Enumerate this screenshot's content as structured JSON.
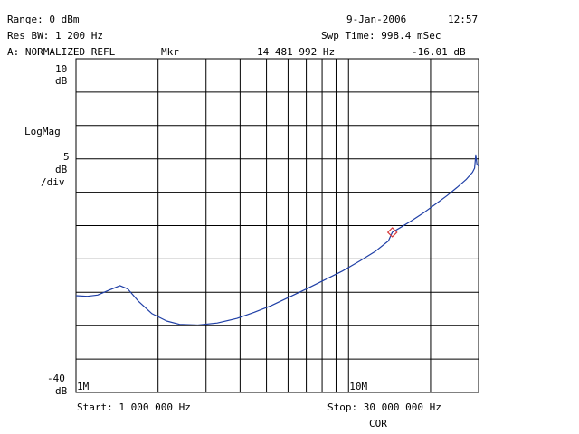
{
  "header": {
    "range": "Range: 0 dBm",
    "date": "9-Jan-2006",
    "time": "12:57",
    "res_bw": "Res BW: 1 200 Hz",
    "sweep_time": "Swp Time: 998.4 mSec",
    "channel": "A: NORMALIZED REFL",
    "marker_label": "Mkr",
    "marker_freq": "14 481 992 Hz",
    "marker_value": "-16.01 dB"
  },
  "scale": {
    "top_value": "10",
    "top_unit": "dB",
    "format": "LogMag",
    "per_div_value": "5",
    "per_div_unit": "dB",
    "per_div_suffix": "/div",
    "bottom_value": "-40",
    "bottom_unit": "dB"
  },
  "footer": {
    "start": "Start: 1 000 000 Hz",
    "stop": "Stop: 30 000 000 Hz",
    "status": "COR"
  },
  "colors": {
    "trace": "#1f3fa6",
    "marker": "#d83a3a",
    "grid": "#000000",
    "background": "#ffffff"
  },
  "chart_data": {
    "type": "line",
    "title": "A: NORMALIZED REFL",
    "xscale": "log",
    "xlim": [
      1000000,
      30000000
    ],
    "ylim": [
      -40,
      10
    ],
    "y_divisions": 10,
    "grid": true,
    "x_tick_labels": [
      {
        "value": 1000000,
        "label": "1M"
      },
      {
        "value": 10000000,
        "label": "10M"
      }
    ],
    "marker": {
      "x": 14481992,
      "y": -16.01
    },
    "series": [
      {
        "x": [
          1000000,
          1100000,
          1200000,
          1300000,
          1450000,
          1550000,
          1700000,
          1900000,
          2150000,
          2400000,
          2800000,
          3300000,
          3900000,
          4500000,
          5200000,
          6000000,
          7000000,
          8200000,
          9500000,
          11000000,
          12500000,
          14000000,
          14481992,
          15500000,
          17000000,
          19000000,
          21000000,
          23000000,
          25000000,
          27000000,
          28500000,
          29000000,
          29300000,
          29600000,
          30000000
        ],
        "y": [
          -25.5,
          -25.6,
          -25.4,
          -24.8,
          -24.0,
          -24.5,
          -26.4,
          -28.2,
          -29.3,
          -29.8,
          -29.9,
          -29.6,
          -28.9,
          -28.0,
          -27.0,
          -25.8,
          -24.5,
          -23.1,
          -21.8,
          -20.3,
          -18.9,
          -17.3,
          -16.0,
          -15.3,
          -14.3,
          -13.0,
          -11.7,
          -10.5,
          -9.3,
          -8.1,
          -7.0,
          -6.4,
          -4.4,
          -5.8,
          -6.1
        ]
      }
    ]
  }
}
